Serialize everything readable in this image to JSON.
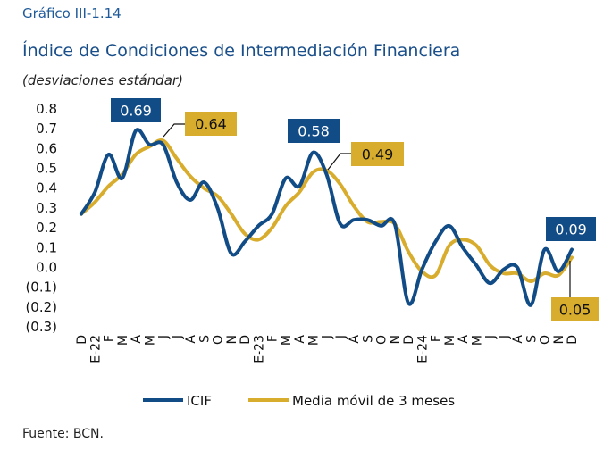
{
  "header": {
    "number": "Gráfico III-1.14",
    "title": "Índice de Condiciones de Intermediación Financiera",
    "subtitle": "(desviaciones estándar)"
  },
  "footer": {
    "source": "Fuente: BCN."
  },
  "colors": {
    "icif": "#124c86",
    "ma": "#d8ad2e"
  },
  "chart_data": {
    "type": "line",
    "categories": [
      "D",
      "E-22",
      "F",
      "M",
      "A",
      "M",
      "J",
      "J",
      "A",
      "S",
      "O",
      "N",
      "D",
      "E-23",
      "F",
      "M",
      "A",
      "M",
      "J",
      "J",
      "A",
      "S",
      "O",
      "N",
      "D",
      "E-24",
      "F",
      "M",
      "A",
      "M",
      "J",
      "J",
      "A",
      "S",
      "O",
      "N",
      "D"
    ],
    "ylim": [
      -0.3,
      0.8
    ],
    "yticks": [
      "0.8",
      "0.7",
      "0.6",
      "0.5",
      "0.4",
      "0.3",
      "0.2",
      "0.1",
      "0.0",
      "(0.1)",
      "(0.2)",
      "(0.3)"
    ],
    "series": [
      {
        "name": "ICIF",
        "values": [
          0.27,
          0.38,
          0.57,
          0.45,
          0.69,
          0.62,
          0.62,
          0.43,
          0.34,
          0.43,
          0.3,
          0.07,
          0.13,
          0.21,
          0.27,
          0.45,
          0.41,
          0.58,
          0.47,
          0.22,
          0.24,
          0.24,
          0.21,
          0.22,
          -0.18,
          -0.01,
          0.13,
          0.21,
          0.1,
          0.01,
          -0.08,
          -0.01,
          0.0,
          -0.19,
          0.09,
          -0.02,
          0.09
        ]
      },
      {
        "name": "Media móvil de 3 meses",
        "values": [
          0.27,
          0.33,
          0.41,
          0.47,
          0.57,
          0.61,
          0.64,
          0.55,
          0.46,
          0.4,
          0.36,
          0.27,
          0.17,
          0.14,
          0.2,
          0.31,
          0.38,
          0.48,
          0.49,
          0.42,
          0.31,
          0.23,
          0.23,
          0.22,
          0.08,
          -0.02,
          -0.04,
          0.11,
          0.14,
          0.11,
          0.01,
          -0.03,
          -0.03,
          -0.07,
          -0.03,
          -0.04,
          0.05
        ]
      }
    ],
    "annotations": [
      {
        "text": "0.69",
        "series": 0,
        "index": 4
      },
      {
        "text": "0.64",
        "series": 1,
        "index": 6
      },
      {
        "text": "0.58",
        "series": 0,
        "index": 17
      },
      {
        "text": "0.49",
        "series": 1,
        "index": 18
      },
      {
        "text": "0.09",
        "series": 0,
        "index": 36
      },
      {
        "text": "0.05",
        "series": 1,
        "index": 36
      }
    ],
    "legend": [
      "ICIF",
      "Media móvil de 3 meses"
    ]
  }
}
